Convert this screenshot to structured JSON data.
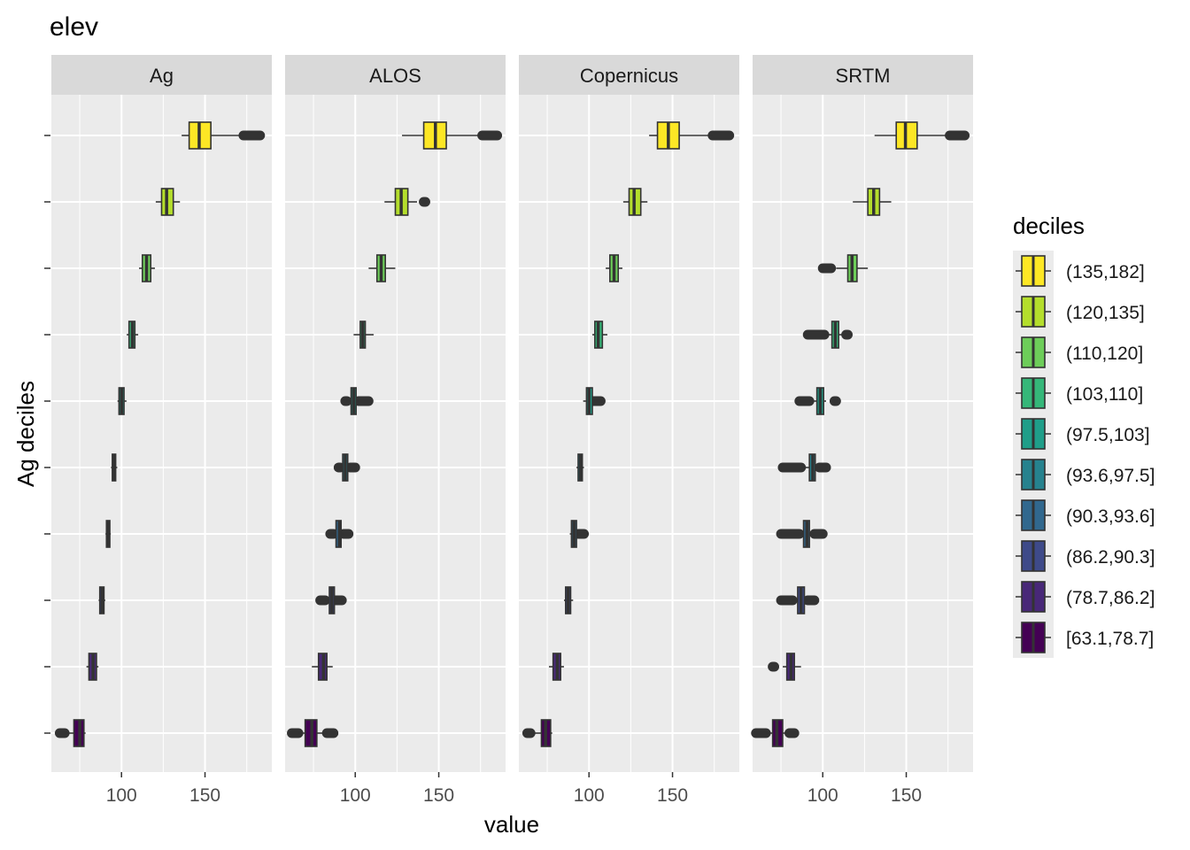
{
  "chart_data": {
    "type": "boxplot",
    "title": "elev",
    "xlabel": "value",
    "ylabel": "Ag deciles",
    "xlim": [
      58,
      190
    ],
    "x_ticks": [
      100,
      150
    ],
    "panels": [
      "Ag",
      "ALOS",
      "Copernicus",
      "SRTM"
    ],
    "legend_title": "deciles",
    "legend_position": "right",
    "categories": [
      "[63.1,78.7]",
      "(78.7,86.2]",
      "(86.2,90.3]",
      "(90.3,93.6]",
      "(93.6,97.5]",
      "(97.5,103]",
      "(103,110]",
      "(110,120]",
      "(120,135]",
      "(135,182]"
    ],
    "colors": [
      "#440154",
      "#482878",
      "#3E4A89",
      "#31688E",
      "#26828E",
      "#1F9E89",
      "#35B779",
      "#6DCD59",
      "#B4DE2C",
      "#FDE725"
    ],
    "series": [
      {
        "name": "Ag",
        "boxes": [
          {
            "q1": 71.5,
            "median": 75.0,
            "q3": 77.5,
            "whisker_low": 66,
            "whisker_high": 78.5,
            "outliers": [
              [
                63,
                66
              ]
            ]
          },
          {
            "q1": 80.5,
            "median": 83.0,
            "q3": 85.0,
            "whisker_low": 79,
            "whisker_high": 86.2,
            "outliers": []
          },
          {
            "q1": 87.0,
            "median": 88.5,
            "q3": 89.5,
            "whisker_low": 86.3,
            "whisker_high": 90.3,
            "outliers": []
          },
          {
            "q1": 91.0,
            "median": 92.0,
            "q3": 93.0,
            "whisker_low": 90.4,
            "whisker_high": 93.6,
            "outliers": []
          },
          {
            "q1": 94.5,
            "median": 95.5,
            "q3": 96.5,
            "whisker_low": 93.7,
            "whisker_high": 97.5,
            "outliers": []
          },
          {
            "q1": 98.5,
            "median": 100.0,
            "q3": 101.5,
            "whisker_low": 97.6,
            "whisker_high": 103,
            "outliers": []
          },
          {
            "q1": 104.5,
            "median": 106.5,
            "q3": 108.0,
            "whisker_low": 103.1,
            "whisker_high": 110,
            "outliers": []
          },
          {
            "q1": 112.5,
            "median": 115.0,
            "q3": 117.5,
            "whisker_low": 110.5,
            "whisker_high": 120,
            "outliers": []
          },
          {
            "q1": 124.0,
            "median": 127.0,
            "q3": 131.0,
            "whisker_low": 120.5,
            "whisker_high": 135,
            "outliers": []
          },
          {
            "q1": 140.5,
            "median": 146.5,
            "q3": 153.5,
            "whisker_low": 136,
            "whisker_high": 173,
            "outliers": [
              [
                173,
                183
              ]
            ]
          }
        ]
      },
      {
        "name": "ALOS",
        "boxes": [
          {
            "q1": 70.0,
            "median": 74.0,
            "q3": 77.0,
            "whisker_low": 66,
            "whisker_high": 83,
            "outliers": [
              [
                62,
                66
              ],
              [
                83,
                87
              ]
            ]
          },
          {
            "q1": 78.0,
            "median": 81.0,
            "q3": 83.0,
            "whisker_low": 74,
            "whisker_high": 86.5,
            "outliers": []
          },
          {
            "q1": 84.5,
            "median": 86.0,
            "q3": 87.5,
            "whisker_low": 82,
            "whisker_high": 88,
            "outliers": [
              [
                79,
                82
              ],
              [
                88,
                92
              ]
            ]
          },
          {
            "q1": 88.5,
            "median": 90.5,
            "q3": 91.5,
            "whisker_low": 87,
            "whisker_high": 93,
            "outliers": [
              [
                85,
                87
              ],
              [
                93,
                96
              ]
            ]
          },
          {
            "q1": 92.5,
            "median": 94.0,
            "q3": 95.5,
            "whisker_low": 91,
            "whisker_high": 97,
            "outliers": [
              [
                90,
                91
              ],
              [
                97,
                100
              ]
            ]
          },
          {
            "q1": 97.5,
            "median": 99.0,
            "q3": 100.5,
            "whisker_low": 95,
            "whisker_high": 102,
            "outliers": [
              [
                94,
                95
              ],
              [
                102,
                108
              ]
            ]
          },
          {
            "q1": 103.0,
            "median": 104.5,
            "q3": 106.0,
            "whisker_low": 99,
            "whisker_high": 111,
            "outliers": []
          },
          {
            "q1": 113.0,
            "median": 115.5,
            "q3": 118.0,
            "whisker_low": 108,
            "whisker_high": 124,
            "outliers": []
          },
          {
            "q1": 124.0,
            "median": 127.5,
            "q3": 131.5,
            "whisker_low": 117.5,
            "whisker_high": 137,
            "outliers": [
              [
                141,
                142
              ]
            ]
          },
          {
            "q1": 141.0,
            "median": 148.0,
            "q3": 154.5,
            "whisker_low": 128,
            "whisker_high": 176,
            "outliers": [
              [
                176,
                185
              ]
            ]
          }
        ]
      },
      {
        "name": "Copernicus",
        "boxes": [
          {
            "q1": 71.5,
            "median": 74.0,
            "q3": 77.0,
            "whisker_low": 65,
            "whisker_high": 78,
            "outliers": [
              [
                63,
                65
              ]
            ]
          },
          {
            "q1": 78.5,
            "median": 81.0,
            "q3": 83.0,
            "whisker_low": 76,
            "whisker_high": 85,
            "outliers": []
          },
          {
            "q1": 86.0,
            "median": 87.5,
            "q3": 89.0,
            "whisker_low": 85,
            "whisker_high": 90.5,
            "outliers": []
          },
          {
            "q1": 89.5,
            "median": 91.0,
            "q3": 92.5,
            "whisker_low": 88.5,
            "whisker_high": 93.5,
            "outliers": [
              [
                93.5,
                97
              ]
            ]
          },
          {
            "q1": 93.5,
            "median": 95.0,
            "q3": 96.0,
            "whisker_low": 92.5,
            "whisker_high": 97,
            "outliers": []
          },
          {
            "q1": 98.5,
            "median": 100.0,
            "q3": 102.0,
            "whisker_low": 96.5,
            "whisker_high": 102,
            "outliers": [
              [
                102,
                107
              ]
            ]
          },
          {
            "q1": 103.5,
            "median": 105.5,
            "q3": 108.0,
            "whisker_low": 102,
            "whisker_high": 111,
            "outliers": []
          },
          {
            "q1": 112.5,
            "median": 115.0,
            "q3": 117.5,
            "whisker_low": 110,
            "whisker_high": 120,
            "outliers": []
          },
          {
            "q1": 124.0,
            "median": 127.0,
            "q3": 131.0,
            "whisker_low": 120.5,
            "whisker_high": 135,
            "outliers": []
          },
          {
            "q1": 141.0,
            "median": 147.5,
            "q3": 154.0,
            "whisker_low": 136,
            "whisker_high": 174,
            "outliers": [
              [
                174,
                184
              ]
            ]
          }
        ]
      },
      {
        "name": "SRTM",
        "boxes": [
          {
            "q1": 70.0,
            "median": 72.5,
            "q3": 76.0,
            "whisker_low": 66,
            "whisker_high": 80,
            "outliers": [
              [
                60,
                66
              ],
              [
                80,
                83
              ]
            ]
          },
          {
            "q1": 78.5,
            "median": 81.0,
            "q3": 83.0,
            "whisker_low": 76,
            "whisker_high": 87,
            "outliers": [
              [
                70,
                71
              ]
            ]
          },
          {
            "q1": 85.0,
            "median": 87.0,
            "q3": 89.0,
            "whisker_low": 82,
            "whisker_high": 91,
            "outliers": [
              [
                75,
                82
              ],
              [
                91,
                95
              ]
            ]
          },
          {
            "q1": 88.5,
            "median": 90.5,
            "q3": 92.0,
            "whisker_low": 86,
            "whisker_high": 95,
            "outliers": [
              [
                75,
                86
              ],
              [
                95,
                100
              ]
            ]
          },
          {
            "q1": 92.0,
            "median": 94.0,
            "q3": 95.5,
            "whisker_low": 87,
            "whisker_high": 98,
            "outliers": [
              [
                76,
                87
              ],
              [
                98,
                102
              ]
            ]
          },
          {
            "q1": 96.5,
            "median": 98.5,
            "q3": 100.5,
            "whisker_low": 92,
            "whisker_high": 102,
            "outliers": [
              [
                86,
                92
              ],
              [
                107,
                108
              ]
            ]
          },
          {
            "q1": 105.5,
            "median": 107.5,
            "q3": 109.5,
            "whisker_low": 101,
            "whisker_high": 112,
            "outliers": [
              [
                91,
                101
              ],
              [
                114,
                115
              ]
            ]
          },
          {
            "q1": 115.0,
            "median": 117.5,
            "q3": 120.5,
            "whisker_low": 108,
            "whisker_high": 127,
            "outliers": [
              [
                100,
                105
              ]
            ]
          },
          {
            "q1": 127.0,
            "median": 130.5,
            "q3": 134.0,
            "whisker_low": 118,
            "whisker_high": 141,
            "outliers": []
          },
          {
            "q1": 144.0,
            "median": 149.5,
            "q3": 156.5,
            "whisker_low": 131,
            "whisker_high": 176,
            "outliers": [
              [
                176,
                185
              ]
            ]
          }
        ]
      }
    ]
  }
}
